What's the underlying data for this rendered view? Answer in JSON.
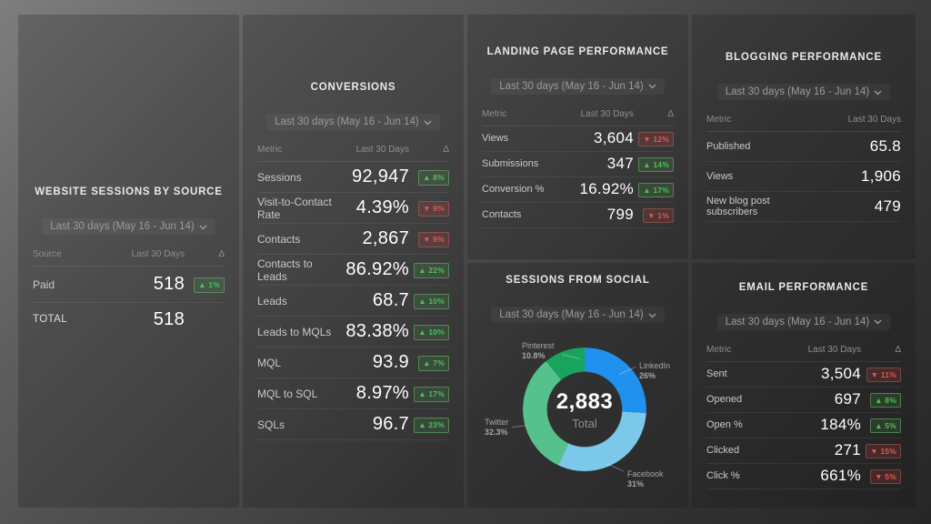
{
  "colors": {
    "positive": "#4fc155",
    "negative": "#e2574e",
    "panel_overlay": "#2e2e2e"
  },
  "panels": {
    "website_sessions": {
      "title": "WEBSITE SESSIONS BY SOURCE",
      "subtitle": "Last 30 days (May 16 - Jun 14)",
      "columns": {
        "metric": "Source",
        "value": "Last 30 Days",
        "delta": "Δ"
      },
      "rows": [
        {
          "label": "Paid",
          "value": "518",
          "delta": {
            "dir": "up",
            "text": "1%"
          }
        }
      ],
      "total": {
        "label": "TOTAL",
        "value": "518"
      }
    },
    "conversions": {
      "title": "CONVERSIONS",
      "subtitle": "Last 30 days (May 16 - Jun 14)",
      "columns": {
        "metric": "Metric",
        "value": "Last 30 Days",
        "delta": "Δ"
      },
      "rows": [
        {
          "label": "Sessions",
          "value": "92,947",
          "delta": {
            "dir": "up",
            "text": "8%"
          }
        },
        {
          "label": "Visit-to-Contact Rate",
          "value": "4.39%",
          "delta": {
            "dir": "down",
            "text": "9%"
          }
        },
        {
          "label": "Contacts",
          "value": "2,867",
          "delta": {
            "dir": "down",
            "text": "9%"
          }
        },
        {
          "label": "Contacts to Leads",
          "value": "86.92%",
          "delta": {
            "dir": "up",
            "text": "22%"
          }
        },
        {
          "label": "Leads",
          "value": "68.7",
          "delta": {
            "dir": "up",
            "text": "10%"
          }
        },
        {
          "label": "Leads to MQLs",
          "value": "83.38%",
          "delta": {
            "dir": "up",
            "text": "10%"
          }
        },
        {
          "label": "MQL",
          "value": "93.9",
          "delta": {
            "dir": "up",
            "text": "7%"
          }
        },
        {
          "label": "MQL to SQL",
          "value": "8.97%",
          "delta": {
            "dir": "up",
            "text": "17%"
          }
        },
        {
          "label": "SQLs",
          "value": "96.7",
          "delta": {
            "dir": "up",
            "text": "23%"
          }
        }
      ]
    },
    "landing_page": {
      "title": "LANDING PAGE PERFORMANCE",
      "subtitle": "Last 30 days (May 16 - Jun 14)",
      "columns": {
        "metric": "Metric",
        "value": "Last 30 Days",
        "delta": "Δ"
      },
      "rows": [
        {
          "label": "Views",
          "value": "3,604",
          "delta": {
            "dir": "down",
            "text": "12%"
          }
        },
        {
          "label": "Submissions",
          "value": "347",
          "delta": {
            "dir": "up",
            "text": "14%"
          }
        },
        {
          "label": "Conversion %",
          "value": "16.92%",
          "delta": {
            "dir": "up",
            "text": "17%"
          }
        },
        {
          "label": "Contacts",
          "value": "799",
          "delta": {
            "dir": "down",
            "text": "1%"
          }
        }
      ]
    },
    "blogging": {
      "title": "BLOGGING PERFORMANCE",
      "subtitle": "Last 30 days (May 16 - Jun 14)",
      "columns": {
        "metric": "Metric",
        "value": "Last 30 Days"
      },
      "rows": [
        {
          "label": "Published",
          "value": "65.8"
        },
        {
          "label": "Views",
          "value": "1,906"
        },
        {
          "label": "New blog post subscribers",
          "value": "479"
        }
      ]
    },
    "social": {
      "title": "SESSIONS FROM SOCIAL",
      "subtitle": "Last 30 days (May 16 - Jun 14)"
    },
    "email": {
      "title": "EMAIL PERFORMANCE",
      "subtitle": "Last 30 days (May 16 - Jun 14)",
      "columns": {
        "metric": "Metric",
        "value": "Last 30 Days",
        "delta": "Δ"
      },
      "rows": [
        {
          "label": "Sent",
          "value": "3,504",
          "delta": {
            "dir": "down",
            "text": "11%"
          }
        },
        {
          "label": "Opened",
          "value": "697",
          "delta": {
            "dir": "up",
            "text": "8%"
          }
        },
        {
          "label": "Open %",
          "value": "184%",
          "delta": {
            "dir": "up",
            "text": "5%"
          }
        },
        {
          "label": "Clicked",
          "value": "271",
          "delta": {
            "dir": "down",
            "text": "15%"
          }
        },
        {
          "label": "Click %",
          "value": "661%",
          "delta": {
            "dir": "down",
            "text": "5%"
          }
        }
      ]
    }
  },
  "chart_data": {
    "type": "pie",
    "title": "SESSIONS FROM SOCIAL",
    "subtitle": "Last 30 days (May 16 - Jun 14)",
    "donut": true,
    "total": 2883,
    "center": {
      "value": "2,883",
      "label": "Total"
    },
    "legend_position": "outside-labels",
    "segments": [
      {
        "label": "LinkedIn",
        "value": 26,
        "pct": "26%",
        "color": "#2191ef"
      },
      {
        "label": "Facebook",
        "value": 31,
        "pct": "31%",
        "color": "#7bc8ea"
      },
      {
        "label": "Twitter",
        "value": 32.3,
        "pct": "32.3%",
        "color": "#55c18c"
      },
      {
        "label": "Pinterest",
        "value": 10.8,
        "pct": "10.8%",
        "color": "#18a45c"
      }
    ]
  }
}
